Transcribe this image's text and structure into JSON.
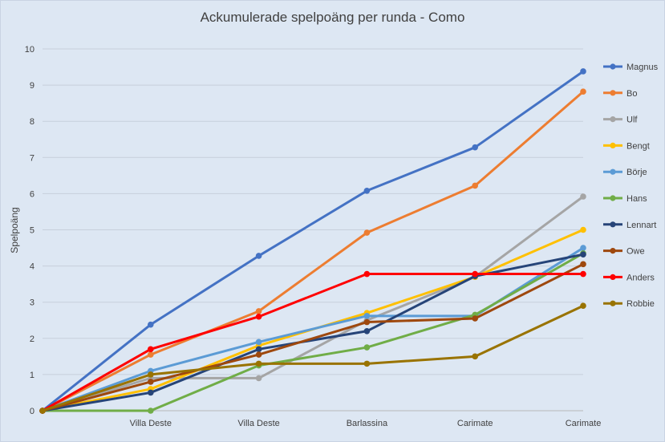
{
  "chart_data": {
    "type": "line",
    "title": "Ackumulerade spelpoäng per runda - Como",
    "xlabel": "",
    "ylabel": "Spelpoäng",
    "ylim": [
      0,
      10
    ],
    "yticks": [
      "0",
      "1",
      "2",
      "3",
      "4",
      "5",
      "6",
      "7",
      "8",
      "9",
      "10"
    ],
    "categories": [
      "",
      "Villa Deste",
      "Villa Deste",
      "Barlassina",
      "Carimate",
      "Carimate"
    ],
    "grid": true,
    "legend_position": "right",
    "series": [
      {
        "name": "Magnus",
        "color": "#4472c4",
        "values": [
          0,
          2.38,
          4.28,
          6.08,
          7.28,
          9.38
        ]
      },
      {
        "name": "Bo",
        "color": "#ed7d31",
        "values": [
          0,
          1.55,
          2.75,
          4.92,
          6.22,
          8.82
        ]
      },
      {
        "name": "Ulf",
        "color": "#a5a5a5",
        "values": [
          0,
          0.9,
          0.9,
          2.5,
          3.7,
          5.92
        ]
      },
      {
        "name": "Bengt",
        "color": "#ffc000",
        "values": [
          0,
          0.6,
          1.8,
          2.7,
          3.7,
          5.0
        ]
      },
      {
        "name": "Börje",
        "color": "#5b9bd5",
        "values": [
          0,
          1.1,
          1.9,
          2.62,
          2.62,
          4.5
        ]
      },
      {
        "name": "Hans",
        "color": "#70ad47",
        "values": [
          0,
          0,
          1.25,
          1.75,
          2.65,
          4.35
        ]
      },
      {
        "name": "Lennart",
        "color": "#264478",
        "values": [
          0,
          0.5,
          1.7,
          2.2,
          3.72,
          4.32
        ]
      },
      {
        "name": "Owe",
        "color": "#9e480e",
        "values": [
          0,
          0.8,
          1.55,
          2.45,
          2.55,
          4.05
        ]
      },
      {
        "name": "Anders",
        "color": "#ff0000",
        "values": [
          0,
          1.7,
          2.6,
          3.78,
          3.78,
          3.78
        ]
      },
      {
        "name": "Robbie",
        "color": "#997300",
        "values": [
          0,
          1.0,
          1.3,
          1.3,
          1.5,
          2.9
        ]
      }
    ]
  }
}
